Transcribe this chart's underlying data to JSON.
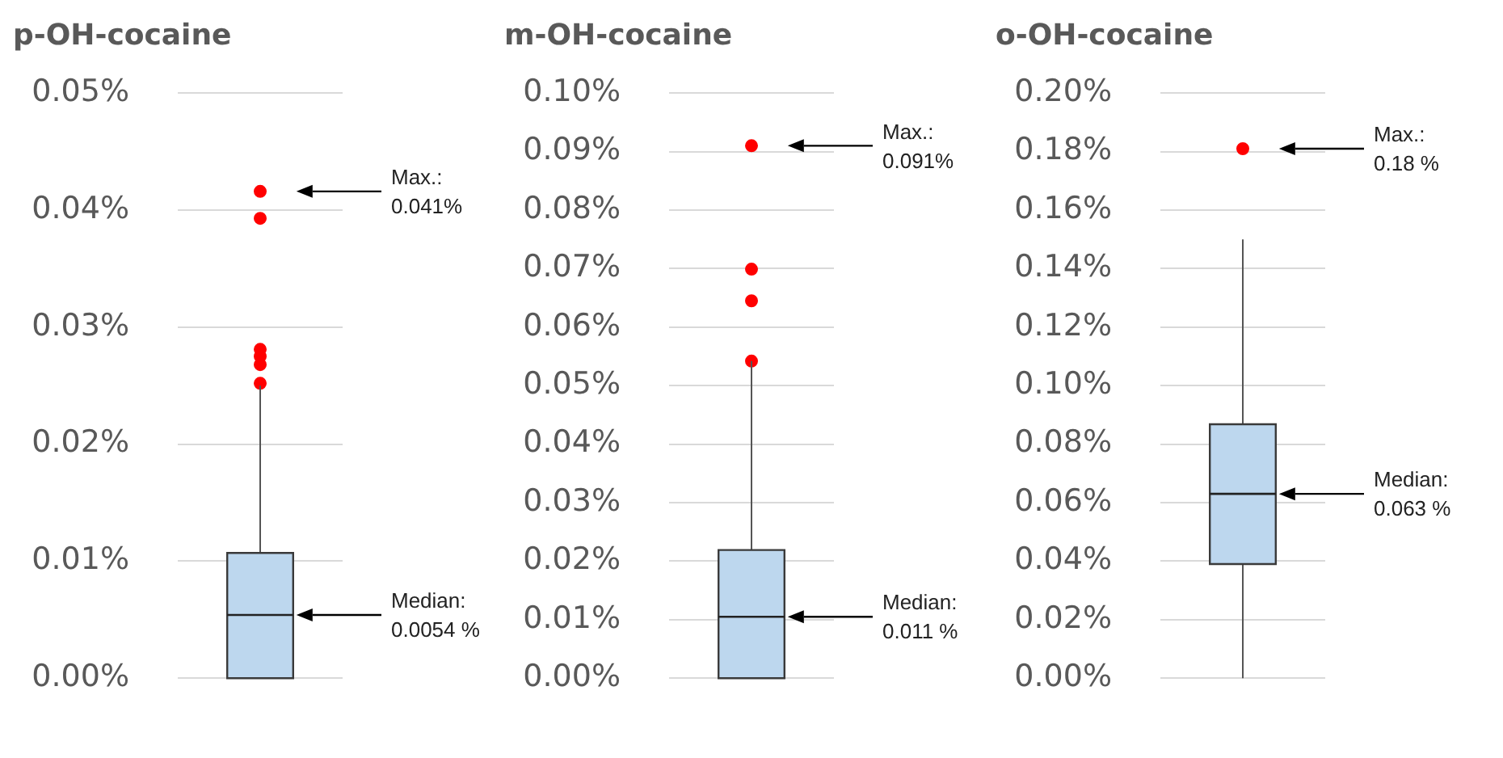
{
  "chart_data": [
    {
      "type": "box",
      "title": "p-OH-cocaine",
      "categories": [
        null
      ],
      "color": "#bdd7ee",
      "boxes": [
        {
          "low": 0,
          "q1": 0,
          "median": 0.0054,
          "q3": 0.0107,
          "high": 0.025,
          "outliers": [
            0.0416,
            0.0393,
            0.0281,
            0.0275,
            0.0268,
            0.0252
          ]
        }
      ],
      "ylim": [
        0,
        0.05
      ],
      "yticks": [
        {
          "value": 0,
          "label": "0.00%"
        },
        {
          "value": 0.01,
          "label": "0.01%"
        },
        {
          "value": 0.02,
          "label": "0.02%"
        },
        {
          "value": 0.03,
          "label": "0.03%"
        },
        {
          "value": 0.04,
          "label": "0.04%"
        },
        {
          "value": 0.05,
          "label": "0.05%"
        }
      ],
      "grid": "y",
      "legend": false,
      "annotations": [
        "Max.:\n0.041%",
        "Median:\n0.0054 %"
      ]
    },
    {
      "type": "box",
      "title": "m-OH-cocaine",
      "categories": [
        null
      ],
      "color": "#bdd7ee",
      "boxes": [
        {
          "low": 0,
          "q1": 0,
          "median": 0.0105,
          "q3": 0.0219,
          "high": 0.0542,
          "outliers": [
            0.091,
            0.0699,
            0.0645,
            0.0542
          ]
        }
      ],
      "ylim": [
        0,
        0.1
      ],
      "yticks": [
        {
          "value": 0,
          "label": "0.00%"
        },
        {
          "value": 0.01,
          "label": "0.01%"
        },
        {
          "value": 0.02,
          "label": "0.02%"
        },
        {
          "value": 0.03,
          "label": "0.03%"
        },
        {
          "value": 0.04,
          "label": "0.04%"
        },
        {
          "value": 0.05,
          "label": "0.05%"
        },
        {
          "value": 0.06,
          "label": "0.06%"
        },
        {
          "value": 0.07,
          "label": "0.07%"
        },
        {
          "value": 0.08,
          "label": "0.08%"
        },
        {
          "value": 0.09,
          "label": "0.09%"
        },
        {
          "value": 0.1,
          "label": "0.10%"
        }
      ],
      "grid": "y",
      "legend": false,
      "annotations": [
        "Max.:\n0.091%",
        "Median:\n0.011 %"
      ]
    },
    {
      "type": "box",
      "title": "o-OH-cocaine",
      "categories": [
        null
      ],
      "color": "#bdd7ee",
      "boxes": [
        {
          "low": 0,
          "q1": 0.039,
          "median": 0.063,
          "q3": 0.0868,
          "high": 0.15,
          "outliers": [
            0.181
          ]
        }
      ],
      "ylim": [
        0,
        0.2
      ],
      "yticks": [
        {
          "value": 0,
          "label": "0.00%"
        },
        {
          "value": 0.02,
          "label": "0.02%"
        },
        {
          "value": 0.04,
          "label": "0.04%"
        },
        {
          "value": 0.06,
          "label": "0.06%"
        },
        {
          "value": 0.08,
          "label": "0.08%"
        },
        {
          "value": 0.1,
          "label": "0.10%"
        },
        {
          "value": 0.12,
          "label": "0.12%"
        },
        {
          "value": 0.14,
          "label": "0.14%"
        },
        {
          "value": 0.16,
          "label": "0.16%"
        },
        {
          "value": 0.18,
          "label": "0.18%"
        },
        {
          "value": 0.2,
          "label": "0.20%"
        }
      ],
      "grid": "y",
      "legend": false,
      "annotations": [
        "Max.:\n0.18 %",
        "Median:\n0.063 %"
      ]
    }
  ]
}
